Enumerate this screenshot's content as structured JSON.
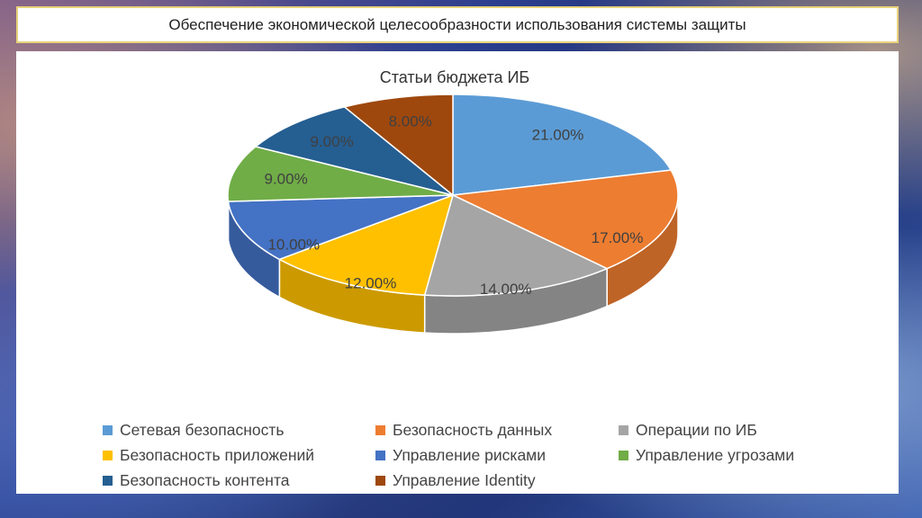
{
  "slide": {
    "title": "Обеспечение экономической целесообразности использования системы защиты"
  },
  "chart_data": {
    "type": "pie",
    "title": "Статьи бюджета ИБ",
    "slices": [
      {
        "name": "Сетевая безопасность",
        "value": 21.0,
        "label": "21.00%",
        "color": "#5b9bd5"
      },
      {
        "name": "Безопасность данных",
        "value": 17.0,
        "label": "17.00%",
        "color": "#ed7d31"
      },
      {
        "name": "Операции по ИБ",
        "value": 14.0,
        "label": "14.00%",
        "color": "#a5a5a5"
      },
      {
        "name": "Безопасность приложений",
        "value": 12.0,
        "label": "12.00%",
        "color": "#ffc000"
      },
      {
        "name": "Управление рисками",
        "value": 10.0,
        "label": "10.00%",
        "color": "#4472c4"
      },
      {
        "name": "Управление угрозами",
        "value": 9.0,
        "label": "9.00%",
        "color": "#70ad47"
      },
      {
        "name": "Безопасность контента",
        "value": 9.0,
        "label": "9.00%",
        "color": "#255e91"
      },
      {
        "name": "Управление Identity",
        "value": 8.0,
        "label": "8.00%",
        "color": "#9e480e"
      }
    ],
    "legend_position": "bottom",
    "style": "3d"
  }
}
